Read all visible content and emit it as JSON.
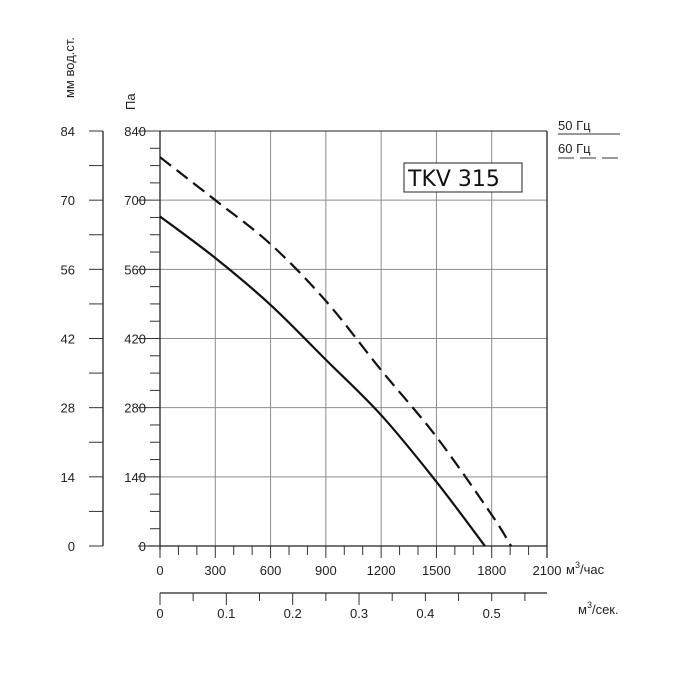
{
  "chart_data": {
    "type": "line",
    "title": "TKV 315",
    "xlabel": "м³/час",
    "x2label": "м³/сек.",
    "ylabel": "Па",
    "y2label": "мм вод.ст.",
    "xlim": [
      0,
      2100
    ],
    "ylim": [
      0,
      840
    ],
    "x_ticks": [
      "0",
      "300",
      "600",
      "900",
      "1200",
      "1500",
      "1800",
      "2100"
    ],
    "x2_ticks": [
      "0",
      "0.1",
      "0.2",
      "0.3",
      "0.4",
      "0.5"
    ],
    "y_ticks": [
      "0",
      "140",
      "280",
      "420",
      "560",
      "700",
      "840"
    ],
    "y2_ticks": [
      "0",
      "14",
      "28",
      "42",
      "56",
      "70",
      "84"
    ],
    "grid": true,
    "legend_position": "top-right",
    "series": [
      {
        "name": "50 Гц",
        "style": "solid",
        "x": [
          0,
          300,
          600,
          900,
          1200,
          1500,
          1763
        ],
        "y": [
          667,
          583,
          488,
          377,
          265,
          130,
          0
        ]
      },
      {
        "name": "60 Гц",
        "style": "dashed",
        "x": [
          0,
          300,
          600,
          900,
          1200,
          1500,
          1800,
          1905
        ],
        "y": [
          787,
          700,
          611,
          496,
          356,
          221,
          63,
          0
        ]
      }
    ]
  },
  "labels": {
    "title_box": "TKV 315",
    "y_inner_unit": "Па",
    "y_outer_unit": "мм вод.ст.",
    "x_unit_main": "м",
    "x_unit_main_sup": "3",
    "x_unit_main_suffix": "/час",
    "x_unit_sec": "м",
    "x_unit_sec_sup": "3",
    "x_unit_sec_suffix": "/сек.",
    "legend_50": "50 Гц",
    "legend_60": "60 Гц"
  }
}
